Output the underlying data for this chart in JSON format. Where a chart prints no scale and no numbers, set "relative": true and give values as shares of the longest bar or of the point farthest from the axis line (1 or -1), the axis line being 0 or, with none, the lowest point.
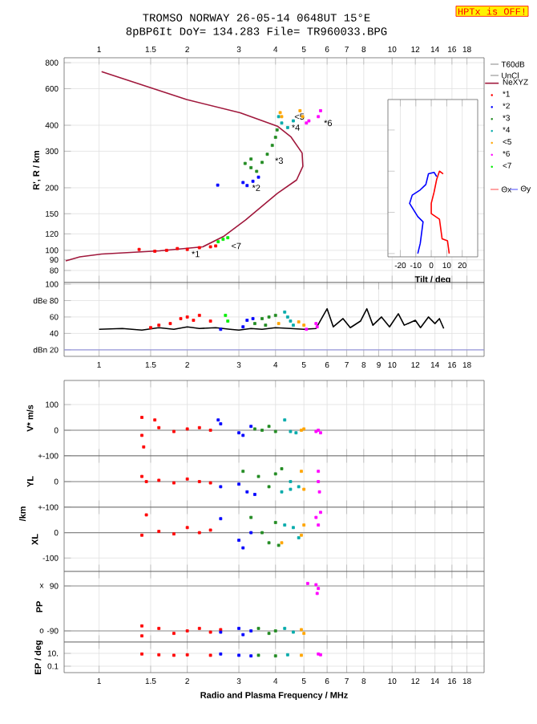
{
  "chart_data": [
    {
      "type": "scatter",
      "title": "TROMSO NORWAY   26-05-14 0648UT 15°E",
      "subtitle": "8pBP6It DoY= 134.283 File= TR960033.BPG",
      "ylabel": "R', R / km",
      "log": "xy",
      "grid": true,
      "marker": "square",
      "legend": "right",
      "xlim": [
        0.76,
        20.6
      ],
      "ylim": [
        70,
        845
      ],
      "xticks": [
        1,
        1.5,
        2,
        3,
        4,
        5,
        6,
        7,
        8,
        10,
        12,
        14,
        16,
        18
      ],
      "yticks": [
        80,
        90,
        100,
        120,
        150,
        200,
        300,
        400,
        600,
        800
      ],
      "series": [
        {
          "name": "NeXYZ",
          "type": "line",
          "marker": "none",
          "color": "#a0183c",
          "x": [
            0.77,
            0.86,
            1.02,
            1.61,
            2.26,
            2.67,
            3.16,
            4.06,
            4.72,
            4.96,
            4.93,
            4.52,
            4.06,
            3.03,
            1.99,
            1.02
          ],
          "values": [
            89,
            93,
            96,
            99.5,
            104,
            117,
            140,
            188,
            218,
            254,
            294,
            351,
            396,
            459,
            532,
            725
          ]
        },
        {
          "name": "*1",
          "color": "#ff0000",
          "x": [
            1.37,
            1.55,
            1.7,
            1.85,
            2.0,
            2.2,
            2.4,
            2.5
          ],
          "values": [
            101,
            99,
            100,
            102,
            101,
            103,
            104,
            105
          ]
        },
        {
          "name": "*2",
          "color": "#0000ff",
          "x": [
            2.54,
            3.1,
            3.2,
            3.35,
            3.5
          ],
          "values": [
            206,
            212,
            205,
            215,
            225
          ]
        },
        {
          "name": "*3",
          "color": "#228b22",
          "x": [
            3.15,
            3.3,
            3.45,
            3.6,
            3.75,
            3.9,
            4.0,
            4.05,
            3.3
          ],
          "values": [
            262,
            250,
            240,
            265,
            290,
            320,
            350,
            380,
            275
          ]
        },
        {
          "name": "*4",
          "color": "#00aaaa",
          "x": [
            4.1,
            4.2,
            4.4,
            4.6
          ],
          "values": [
            440,
            410,
            390,
            420
          ]
        },
        {
          "name": "<5",
          "color": "#ffa500",
          "x": [
            4.15,
            4.2,
            4.85,
            4.95
          ],
          "values": [
            460,
            440,
            470,
            440
          ]
        },
        {
          "name": "*6",
          "color": "#ff00ff",
          "x": [
            5.6,
            5.7,
            5.1,
            5.2
          ],
          "values": [
            440,
            470,
            410,
            420
          ]
        },
        {
          "name": "<7",
          "color": "#00ee00",
          "x": [
            2.55,
            2.65,
            2.75
          ],
          "values": [
            110,
            113,
            115
          ]
        }
      ],
      "annotations": [
        "HPTx is OFF!",
        "T60dB",
        "UnCl",
        "Θx",
        "Θy",
        {
          "text": "*1",
          "x": 2.05,
          "y": 96
        },
        {
          "text": "*2",
          "x": 3.3,
          "y": 200
        },
        {
          "text": "*3",
          "x": 3.95,
          "y": 270
        },
        {
          "text": "*4",
          "x": 4.5,
          "y": 390
        },
        {
          "text": "<5",
          "x": 4.6,
          "y": 440
        },
        {
          "text": "*6",
          "x": 5.8,
          "y": 410
        },
        {
          "text": "<7",
          "x": 2.8,
          "y": 105
        }
      ]
    },
    {
      "type": "line",
      "xlabel": "Tilt / deg",
      "relative": true,
      "grid": "x",
      "tick_labels": "x",
      "xlim": [
        -28,
        30
      ],
      "xticks": [
        -20,
        -10,
        0,
        10,
        20
      ],
      "series": [
        {
          "color": "#ff0000",
          "x": [
            11.6,
            10.5,
            7.0,
            5.3,
            0,
            0,
            1.8,
            3.5,
            5.3,
            7.7
          ],
          "values": [
            0,
            0.154,
            0.18,
            0.417,
            0.485,
            0.609,
            0.744,
            0.9,
            1.0,
            0.968
          ]
        },
        {
          "color": "#0000ff",
          "x": [
            -8.7,
            -7.1,
            -5.3,
            -8.7,
            -14,
            -12.3,
            -7.1,
            -3.5,
            -1.8,
            1.8,
            3.5
          ],
          "values": [
            0,
            0.124,
            0.385,
            0.448,
            0.609,
            0.709,
            0.773,
            0.838,
            0.968,
            0.986,
            0.934
          ]
        }
      ]
    },
    {
      "type": "scatter",
      "log": "x",
      "grid": true,
      "marker": "square",
      "xlim": [
        0.76,
        20.6
      ],
      "ylim": [
        12,
        102
      ],
      "xticks": [
        1,
        1.5,
        2,
        3,
        4,
        5,
        6,
        7,
        8,
        9,
        10,
        12,
        14,
        16,
        18
      ],
      "yticks": [
        {
          "value": 20,
          "label": "dBn 20"
        },
        40,
        60,
        {
          "value": 80,
          "label": "dBe 80"
        },
        100
      ],
      "ref_lines": [
        {
          "axis": "y",
          "value": 20,
          "color": "#9999dd"
        }
      ],
      "series": [
        {
          "type": "line",
          "marker": "none",
          "color": "#000000",
          "x": [
            1.0,
            1.2,
            1.4,
            1.6,
            1.8,
            2.0,
            2.2,
            2.5,
            2.8,
            3.0,
            3.3,
            3.6,
            4.0,
            4.5,
            5.0,
            5.5,
            6.0,
            6.3,
            6.8,
            7.2,
            7.8,
            8.2,
            8.6,
            9.2,
            9.8,
            10.5,
            11,
            12,
            12.5,
            13.3,
            14,
            14.5,
            15
          ],
          "values": [
            45,
            46,
            44,
            47,
            45,
            48,
            46,
            47,
            45,
            44,
            46,
            45,
            47,
            46,
            45,
            46,
            70,
            48,
            58,
            47,
            55,
            70,
            50,
            60,
            48,
            64,
            50,
            56,
            47,
            60,
            52,
            58,
            46
          ]
        },
        {
          "color": "#ff0000",
          "x": [
            1.5,
            1.6,
            1.75,
            1.9,
            2.0,
            2.1,
            2.2,
            2.4
          ],
          "values": [
            47,
            50,
            52,
            58,
            60,
            56,
            62,
            55
          ]
        },
        {
          "color": "#0000ff",
          "x": [
            2.6,
            3.1,
            3.2,
            3.35
          ],
          "values": [
            45,
            48,
            56,
            58
          ]
        },
        {
          "color": "#228b22",
          "x": [
            3.4,
            3.6,
            3.7,
            3.8,
            4.0
          ],
          "values": [
            52,
            58,
            50,
            60,
            62
          ]
        },
        {
          "color": "#00aaaa",
          "x": [
            4.3,
            4.4,
            4.5,
            4.6
          ],
          "values": [
            66,
            60,
            55,
            50
          ]
        },
        {
          "color": "#ffa500",
          "x": [
            4.1,
            4.8,
            5.0
          ],
          "values": [
            52,
            54,
            50
          ]
        },
        {
          "color": "#ff00ff",
          "x": [
            5.1,
            5.5,
            5.55
          ],
          "values": [
            45,
            52,
            48
          ]
        },
        {
          "color": "#00ee00",
          "x": [
            2.7,
            2.75
          ],
          "values": [
            62,
            55
          ]
        }
      ]
    },
    {
      "type": "scatter",
      "ylabel": "V* m/s",
      "log": "x",
      "grid": true,
      "marker": "square",
      "tick_labels": "y",
      "xlim": [
        0.76,
        20.6
      ],
      "ylim": [
        -100,
        194
      ],
      "xticks": [
        1,
        1.5,
        2,
        3,
        4,
        5,
        6,
        7,
        8,
        10,
        12,
        14,
        16,
        18
      ],
      "yticks": [
        100,
        0,
        {
          "value": -100,
          "label": "+-100"
        }
      ],
      "ref_lines": [
        {
          "axis": "y",
          "value": 0,
          "color": "#888888"
        }
      ],
      "series": [
        {
          "color": "#ff0000",
          "x": [
            1.4,
            1.4,
            1.42,
            1.55,
            1.6,
            1.8,
            2.0,
            2.2,
            2.4
          ],
          "values": [
            50,
            -20,
            -65,
            40,
            10,
            -5,
            5,
            10,
            0
          ]
        },
        {
          "color": "#0000ff",
          "x": [
            2.55,
            2.6,
            3.0,
            3.1,
            3.3
          ],
          "values": [
            40,
            25,
            -10,
            -20,
            15
          ]
        },
        {
          "color": "#228b22",
          "x": [
            3.4,
            3.6,
            3.8,
            4.0
          ],
          "values": [
            5,
            0,
            15,
            -5
          ]
        },
        {
          "color": "#00aaaa",
          "x": [
            4.3,
            4.5,
            4.7
          ],
          "values": [
            40,
            -5,
            -10
          ]
        },
        {
          "color": "#ffa500",
          "x": [
            4.9,
            5.0
          ],
          "values": [
            0,
            5
          ]
        },
        {
          "color": "#ff00ff",
          "x": [
            5.5,
            5.7,
            5.6
          ],
          "values": [
            -5,
            -10,
            0
          ]
        }
      ]
    },
    {
      "type": "scatter",
      "ylabel": "YL",
      "log": "x",
      "grid": true,
      "marker": "square",
      "tick_labels": "y",
      "xlim": [
        0.76,
        20.6
      ],
      "ylim": [
        -100,
        100
      ],
      "xticks": [
        1,
        1.5,
        2,
        3,
        4,
        5,
        6,
        7,
        8,
        10,
        12,
        14,
        16,
        18
      ],
      "yticks": [
        0,
        {
          "value": -100,
          "label": "+-100"
        }
      ],
      "ref_lines": [
        {
          "axis": "y",
          "value": 0,
          "color": "#888888"
        }
      ],
      "annotations": [
        "/km"
      ],
      "series": [
        {
          "color": "#ff0000",
          "x": [
            1.4,
            1.45,
            1.6,
            1.8,
            2.0,
            2.2,
            2.4
          ],
          "values": [
            20,
            0,
            5,
            -5,
            10,
            0,
            -5
          ]
        },
        {
          "color": "#0000ff",
          "x": [
            2.6,
            3.0,
            3.2,
            3.4
          ],
          "values": [
            -20,
            -10,
            -40,
            -50
          ]
        },
        {
          "color": "#228b22",
          "x": [
            3.1,
            3.5,
            3.8,
            4.0,
            4.2
          ],
          "values": [
            40,
            20,
            -20,
            30,
            50
          ]
        },
        {
          "color": "#00aaaa",
          "x": [
            4.2,
            4.5,
            4.8,
            4.5
          ],
          "values": [
            -40,
            -30,
            -20,
            0
          ]
        },
        {
          "color": "#ffa500",
          "x": [
            4.9,
            5.0
          ],
          "values": [
            40,
            -30
          ]
        },
        {
          "color": "#ff00ff",
          "x": [
            5.6,
            5.65,
            5.6
          ],
          "values": [
            40,
            -40,
            0
          ]
        }
      ]
    },
    {
      "type": "scatter",
      "ylabel": "XL",
      "log": "x",
      "grid": true,
      "marker": "square",
      "tick_labels": "y",
      "xlim": [
        0.76,
        20.6
      ],
      "ylim": [
        -153,
        100
      ],
      "xticks": [
        1,
        1.5,
        2,
        3,
        4,
        5,
        6,
        7,
        8,
        10,
        12,
        14,
        16,
        18
      ],
      "yticks": [
        0,
        -100
      ],
      "ref_lines": [
        {
          "axis": "y",
          "value": 0,
          "color": "#888888"
        }
      ],
      "series": [
        {
          "color": "#ff0000",
          "x": [
            1.4,
            1.45,
            1.6,
            1.8,
            2.0,
            2.2,
            2.4
          ],
          "values": [
            -10,
            70,
            5,
            -5,
            20,
            0,
            10
          ]
        },
        {
          "color": "#0000ff",
          "x": [
            2.6,
            3.0,
            3.1,
            3.3
          ],
          "values": [
            55,
            -30,
            -60,
            0
          ]
        },
        {
          "color": "#228b22",
          "x": [
            3.3,
            3.6,
            3.8,
            4.0,
            4.1
          ],
          "values": [
            60,
            0,
            -40,
            40,
            -50
          ]
        },
        {
          "color": "#00aaaa",
          "x": [
            4.3,
            4.6,
            4.8
          ],
          "values": [
            30,
            20,
            -20
          ]
        },
        {
          "color": "#ffa500",
          "x": [
            4.2,
            4.9,
            5.0
          ],
          "values": [
            -40,
            -10,
            30
          ]
        },
        {
          "color": "#ff00ff",
          "x": [
            5.5,
            5.6,
            5.7
          ],
          "values": [
            60,
            30,
            80
          ]
        }
      ]
    },
    {
      "type": "scatter",
      "ylabel": "PP",
      "log": "x",
      "grid": "x",
      "marker": "square",
      "tick_labels": "y",
      "xlim": [
        0.76,
        20.6
      ],
      "ylim": [
        -135,
        148
      ],
      "xticks": [
        1,
        1.5,
        2,
        3,
        4,
        5,
        6,
        7,
        8,
        10,
        12,
        14,
        16,
        18
      ],
      "yticks": [
        90,
        -90
      ],
      "annotations": [
        "x",
        "o"
      ],
      "ref_lines": [
        {
          "axis": "y",
          "value": 90,
          "color": "#888888"
        },
        {
          "axis": "y",
          "value": -90,
          "color": "#888888"
        }
      ],
      "series": [
        {
          "color": "#ff0000",
          "x": [
            1.4,
            1.4,
            1.6,
            1.8,
            2.0,
            2.2,
            2.4,
            2.6
          ],
          "values": [
            -70,
            -110,
            -80,
            -100,
            -90,
            -80,
            -95,
            -85
          ]
        },
        {
          "color": "#0000ff",
          "x": [
            2.6,
            3.0,
            3.1,
            3.3
          ],
          "values": [
            -95,
            -80,
            -105,
            -90
          ]
        },
        {
          "color": "#228b22",
          "x": [
            3.5,
            3.8,
            4.0
          ],
          "values": [
            -80,
            -100,
            -90
          ]
        },
        {
          "color": "#00aaaa",
          "x": [
            4.3,
            4.6
          ],
          "values": [
            -80,
            -95
          ]
        },
        {
          "color": "#ffa500",
          "x": [
            4.9,
            5.0
          ],
          "values": [
            -85,
            -100
          ]
        },
        {
          "color": "#ff00ff",
          "x": [
            5.15,
            5.5,
            5.6,
            5.55
          ],
          "values": [
            100,
            95,
            80,
            60
          ]
        }
      ]
    },
    {
      "type": "scatter",
      "ylabel": "EP / deg",
      "xlabel": "Radio and Plasma Frequency / MHz",
      "log": "xy",
      "grid": true,
      "marker": "square",
      "xlim": [
        0.76,
        20.6
      ],
      "ylim": [
        0.01,
        562
      ],
      "xticks": [
        1,
        1.5,
        2,
        3,
        4,
        5,
        6,
        7,
        8,
        10,
        12,
        14,
        16,
        18
      ],
      "yticks": [
        {
          "value": 10,
          "label": "10."
        },
        0.1
      ],
      "series": [
        {
          "color": "#ff0000",
          "x": [
            1.4,
            1.6,
            1.8,
            2.0,
            2.4
          ],
          "values": [
            8,
            6,
            5,
            6,
            5
          ]
        },
        {
          "color": "#0000ff",
          "x": [
            2.6,
            3.0,
            3.3
          ],
          "values": [
            8,
            5,
            4
          ]
        },
        {
          "color": "#228b22",
          "x": [
            3.5,
            4.0
          ],
          "values": [
            5,
            4
          ]
        },
        {
          "color": "#00aaaa",
          "x": [
            4.4
          ],
          "values": [
            6
          ]
        },
        {
          "color": "#ffa500",
          "x": [
            4.9
          ],
          "values": [
            5
          ]
        },
        {
          "color": "#ff00ff",
          "x": [
            5.6,
            5.7
          ],
          "values": [
            8,
            6
          ]
        }
      ]
    }
  ]
}
